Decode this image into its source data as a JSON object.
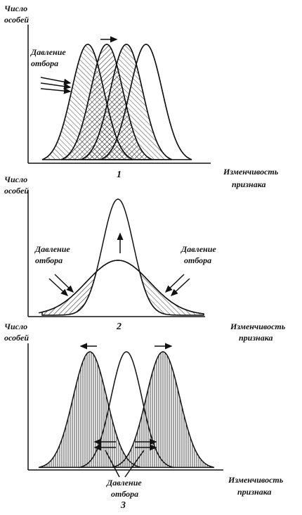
{
  "panels": [
    {
      "y_label": [
        "Число",
        "особей"
      ],
      "pressure_left": [
        "Давление",
        "отбора"
      ],
      "number": "1",
      "x_label": [
        "Изменчивость",
        "признака"
      ]
    },
    {
      "y_label": [
        "Число",
        "особей"
      ],
      "pressure_left": [
        "Давление",
        "отбора"
      ],
      "pressure_right": [
        "Давление",
        "отбора"
      ],
      "number": "2",
      "x_label": [
        "Изменчивость",
        "признака"
      ]
    },
    {
      "y_label": [
        "Число",
        "особей"
      ],
      "pressure_center": [
        "Давление",
        "отбора"
      ],
      "number": "3",
      "x_label": [
        "Изменчивость",
        "признака"
      ]
    }
  ]
}
